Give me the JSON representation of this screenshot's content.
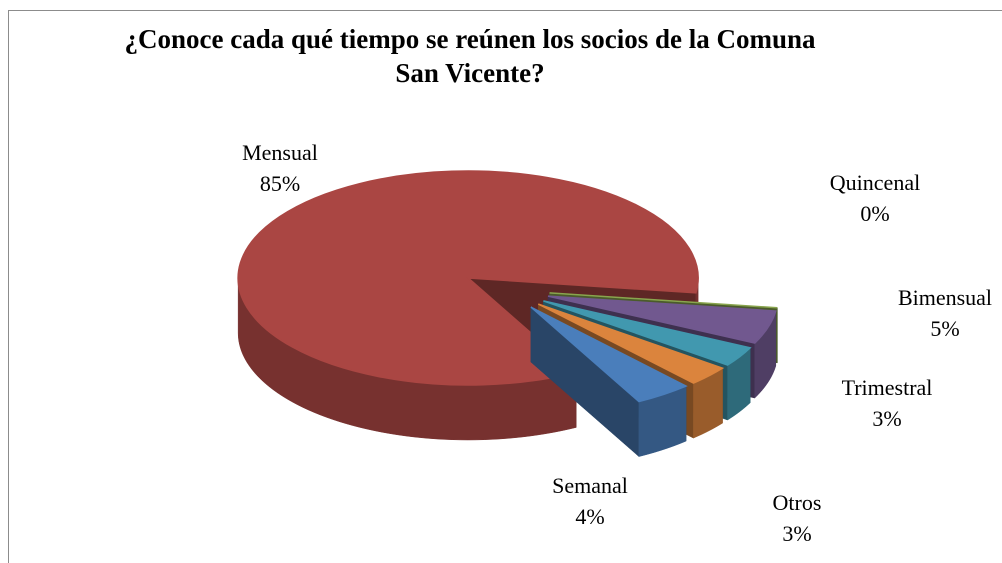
{
  "chart_data": {
    "type": "pie",
    "title": "¿Conoce cada qué tiempo se reúnen los socios de la Comuna San Vicente?",
    "categories": [
      "Semanal",
      "Mensual",
      "Quincenal",
      "Bimensual",
      "Trimestral",
      "Otros"
    ],
    "values": [
      4,
      85,
      0,
      5,
      3,
      3
    ],
    "value_labels": [
      "4%",
      "85%",
      "0%",
      "5%",
      "3%",
      "3%"
    ],
    "colors": [
      "#4a7ebb",
      "#aa4643",
      "#89a54e",
      "#71588f",
      "#4198af",
      "#db843d"
    ]
  }
}
